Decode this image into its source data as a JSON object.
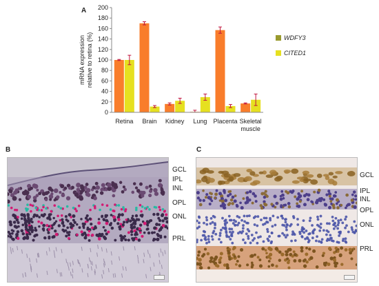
{
  "figure": {
    "panel_labels": [
      "A",
      "B",
      "C"
    ]
  },
  "chart_data": {
    "type": "bar",
    "ylabel": "mRNA expression relative to retina (%)",
    "ylim": [
      0,
      200
    ],
    "yticks": [
      0,
      20,
      40,
      60,
      80,
      100,
      120,
      140,
      160,
      180,
      200
    ],
    "categories": [
      "Retina",
      "Brain",
      "Kidney",
      "Lung",
      "Placenta",
      "Skeletal muscle"
    ],
    "category_lines": [
      [
        "Retina"
      ],
      [
        "Brain"
      ],
      [
        "Kidney"
      ],
      [
        "Lung"
      ],
      [
        "Placenta"
      ],
      [
        "Skeletal",
        "muscle"
      ]
    ],
    "series": [
      {
        "name": "WDFY3",
        "values": [
          100,
          170,
          16,
          1,
          157,
          17
        ],
        "errors": [
          1,
          3,
          2,
          3,
          6,
          1
        ],
        "color": "#f97d2b",
        "legend_color": "#999a2e"
      },
      {
        "name": "CITED1",
        "values": [
          100,
          11,
          22,
          29,
          12,
          24
        ],
        "errors": [
          9,
          2,
          5,
          6,
          3,
          11
        ],
        "color": "#e6e020",
        "legend_color": "#e6e020"
      }
    ],
    "legend_position": "right",
    "error_bar_color": "#c0143c"
  },
  "panel_b": {
    "layers": [
      "GCL",
      "IPL",
      "INL",
      "OPL",
      "ONL",
      "PRL"
    ]
  },
  "panel_c": {
    "layers": [
      "GCL",
      "IPL",
      "INL",
      "OPL",
      "ONL",
      "PRL"
    ]
  }
}
